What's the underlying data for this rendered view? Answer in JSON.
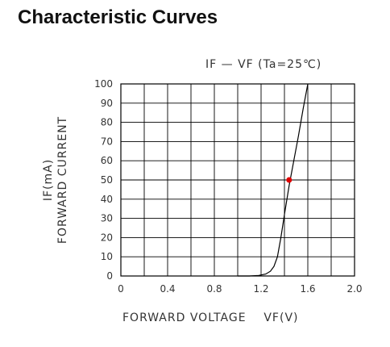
{
  "page": {
    "heading": "Characteristic Curves"
  },
  "chart_data": {
    "type": "line",
    "title": "IF — VF (Ta=25℃)",
    "xlabel": "FORWARD VOLTAGE    VF(V)",
    "ylabel_line1": "IF(mA)",
    "ylabel_line2": "FORWARD CURRENT",
    "xlim": [
      0,
      2.0
    ],
    "ylim": [
      0,
      100
    ],
    "x_ticks": [
      "0",
      "0.4",
      "0.8",
      "1.2",
      "1.6",
      "2.0"
    ],
    "y_ticks": [
      "0",
      "10",
      "20",
      "30",
      "40",
      "50",
      "60",
      "70",
      "80",
      "90",
      "100"
    ],
    "grid": true,
    "series": [
      {
        "color": "#000000",
        "x": [
          1.0,
          1.1,
          1.18,
          1.24,
          1.28,
          1.31,
          1.34,
          1.37,
          1.4,
          1.44,
          1.48,
          1.52,
          1.56,
          1.6
        ],
        "y": [
          0,
          0,
          0.3,
          1.0,
          2.5,
          5,
          10,
          20,
          32,
          47,
          60,
          73,
          87,
          100
        ]
      }
    ],
    "marker": {
      "x": 1.44,
      "y": 50,
      "color": "#e00000"
    }
  }
}
